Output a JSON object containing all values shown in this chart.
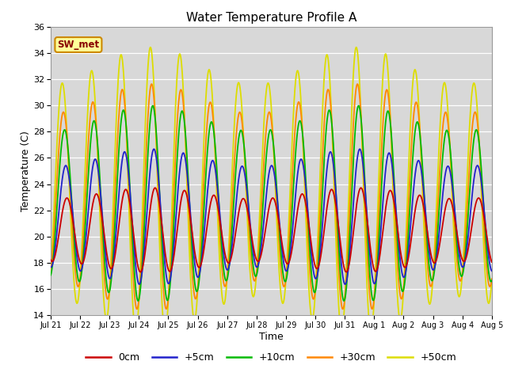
{
  "title": "Water Temperature Profile A",
  "xlabel": "Time",
  "ylabel": "Temperature (C)",
  "ylim": [
    14,
    36
  ],
  "yticks": [
    14,
    16,
    18,
    20,
    22,
    24,
    26,
    28,
    30,
    32,
    34,
    36
  ],
  "plot_bg_color": "#d8d8d8",
  "line_colors": {
    "0cm": "#cc0000",
    "+5cm": "#2222cc",
    "+10cm": "#00bb00",
    "+30cm": "#ff8800",
    "+50cm": "#dddd00"
  },
  "legend_label": "SW_met",
  "legend_box_color": "#ffff99",
  "legend_box_border": "#cc8800",
  "legend_text_color": "#880000",
  "num_points": 2000,
  "total_days": 15,
  "series_params": {
    "0cm": {
      "mid": 20.5,
      "amp": 2.8,
      "phase": 0.0,
      "min_floor": 17.5
    },
    "+5cm": {
      "mid": 21.5,
      "amp": 4.5,
      "phase": 0.25,
      "min_floor": 17.5
    },
    "+10cm": {
      "mid": 22.5,
      "amp": 6.5,
      "phase": 0.5,
      "min_floor": 17.5
    },
    "+30cm": {
      "mid": 23.0,
      "amp": 7.5,
      "phase": 0.75,
      "min_floor": 17.0
    },
    "+50cm": {
      "mid": 23.5,
      "amp": 9.5,
      "phase": 1.0,
      "min_floor": 16.5
    }
  }
}
